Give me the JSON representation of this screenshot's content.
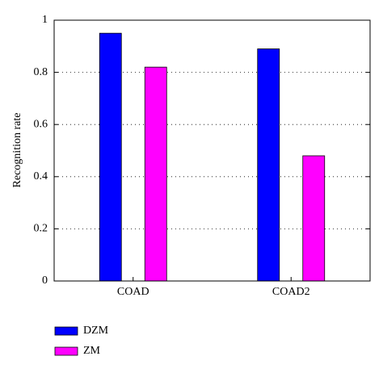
{
  "chart_data": {
    "type": "bar",
    "y_label": "Recognition rate",
    "categories": [
      "COAD",
      "COAD2"
    ],
    "series": [
      {
        "name": "DZM",
        "color": "#0000ff",
        "values": [
          0.95,
          0.89
        ]
      },
      {
        "name": "ZM",
        "color": "#ff00ff",
        "values": [
          0.82,
          0.48
        ]
      }
    ],
    "ylim": [
      0,
      1
    ],
    "yticks": [
      0,
      0.2,
      0.4,
      0.6,
      0.8,
      1
    ],
    "grid": true,
    "legend": "bottom-left"
  }
}
